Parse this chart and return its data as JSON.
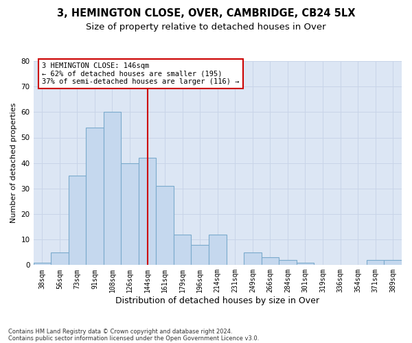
{
  "title1": "3, HEMINGTON CLOSE, OVER, CAMBRIDGE, CB24 5LX",
  "title2": "Size of property relative to detached houses in Over",
  "xlabel": "Distribution of detached houses by size in Over",
  "ylabel": "Number of detached properties",
  "categories": [
    "38sqm",
    "56sqm",
    "73sqm",
    "91sqm",
    "108sqm",
    "126sqm",
    "144sqm",
    "161sqm",
    "179sqm",
    "196sqm",
    "214sqm",
    "231sqm",
    "249sqm",
    "266sqm",
    "284sqm",
    "301sqm",
    "319sqm",
    "336sqm",
    "354sqm",
    "371sqm",
    "389sqm"
  ],
  "values": [
    1,
    5,
    35,
    54,
    60,
    40,
    42,
    31,
    12,
    8,
    12,
    0,
    5,
    3,
    2,
    1,
    0,
    0,
    0,
    2,
    2
  ],
  "bar_color": "#c5d8ee",
  "bar_edge_color": "#7aaacc",
  "bar_width": 1.0,
  "vline_x": 6,
  "vline_color": "#cc0000",
  "annotation_text": "3 HEMINGTON CLOSE: 146sqm\n← 62% of detached houses are smaller (195)\n37% of semi-detached houses are larger (116) →",
  "annotation_box_color": "#ffffff",
  "annotation_box_edge": "#cc0000",
  "ylim": [
    0,
    80
  ],
  "yticks": [
    0,
    10,
    20,
    30,
    40,
    50,
    60,
    70,
    80
  ],
  "grid_color": "#c8d4e8",
  "bg_color": "#dce6f4",
  "footnote1": "Contains HM Land Registry data © Crown copyright and database right 2024.",
  "footnote2": "Contains public sector information licensed under the Open Government Licence v3.0.",
  "title1_fontsize": 10.5,
  "title2_fontsize": 9.5,
  "xlabel_fontsize": 9,
  "ylabel_fontsize": 8,
  "tick_fontsize": 7,
  "annot_fontsize": 7.5
}
